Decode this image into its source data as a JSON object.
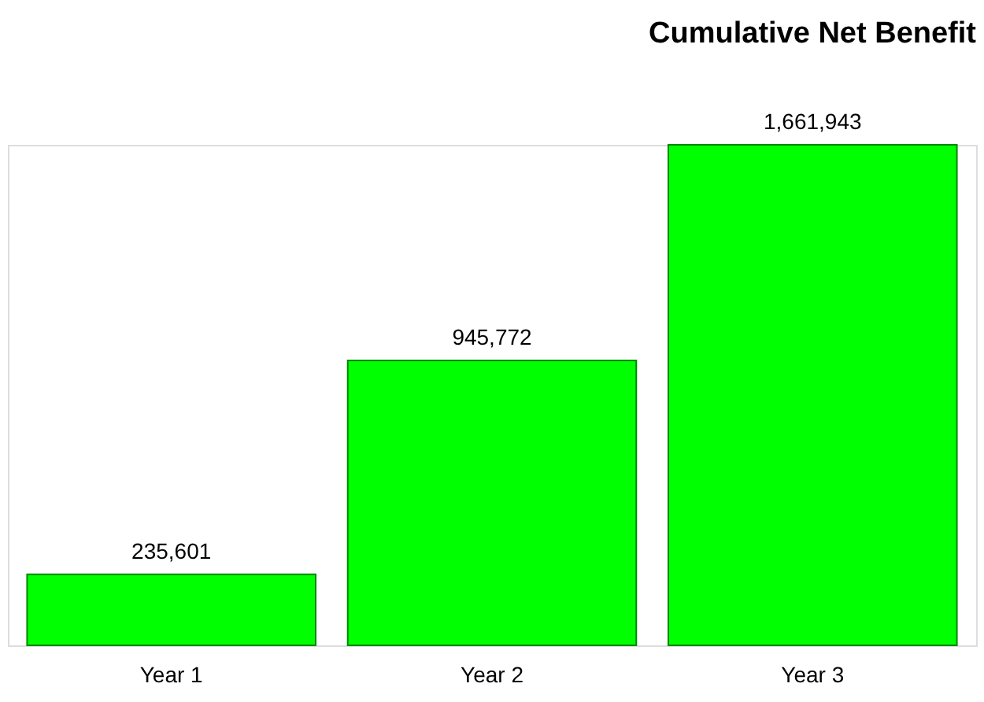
{
  "chart_data": {
    "type": "bar",
    "title": "Cumulative Net Benefit",
    "categories": [
      "Year 1",
      "Year 2",
      "Year 3"
    ],
    "values": [
      235601,
      945772,
      1661943
    ],
    "value_labels": [
      "235,601",
      "945,772",
      "1,661,943"
    ],
    "color": "#00ff00",
    "tick_labels": "x",
    "grid": false
  }
}
